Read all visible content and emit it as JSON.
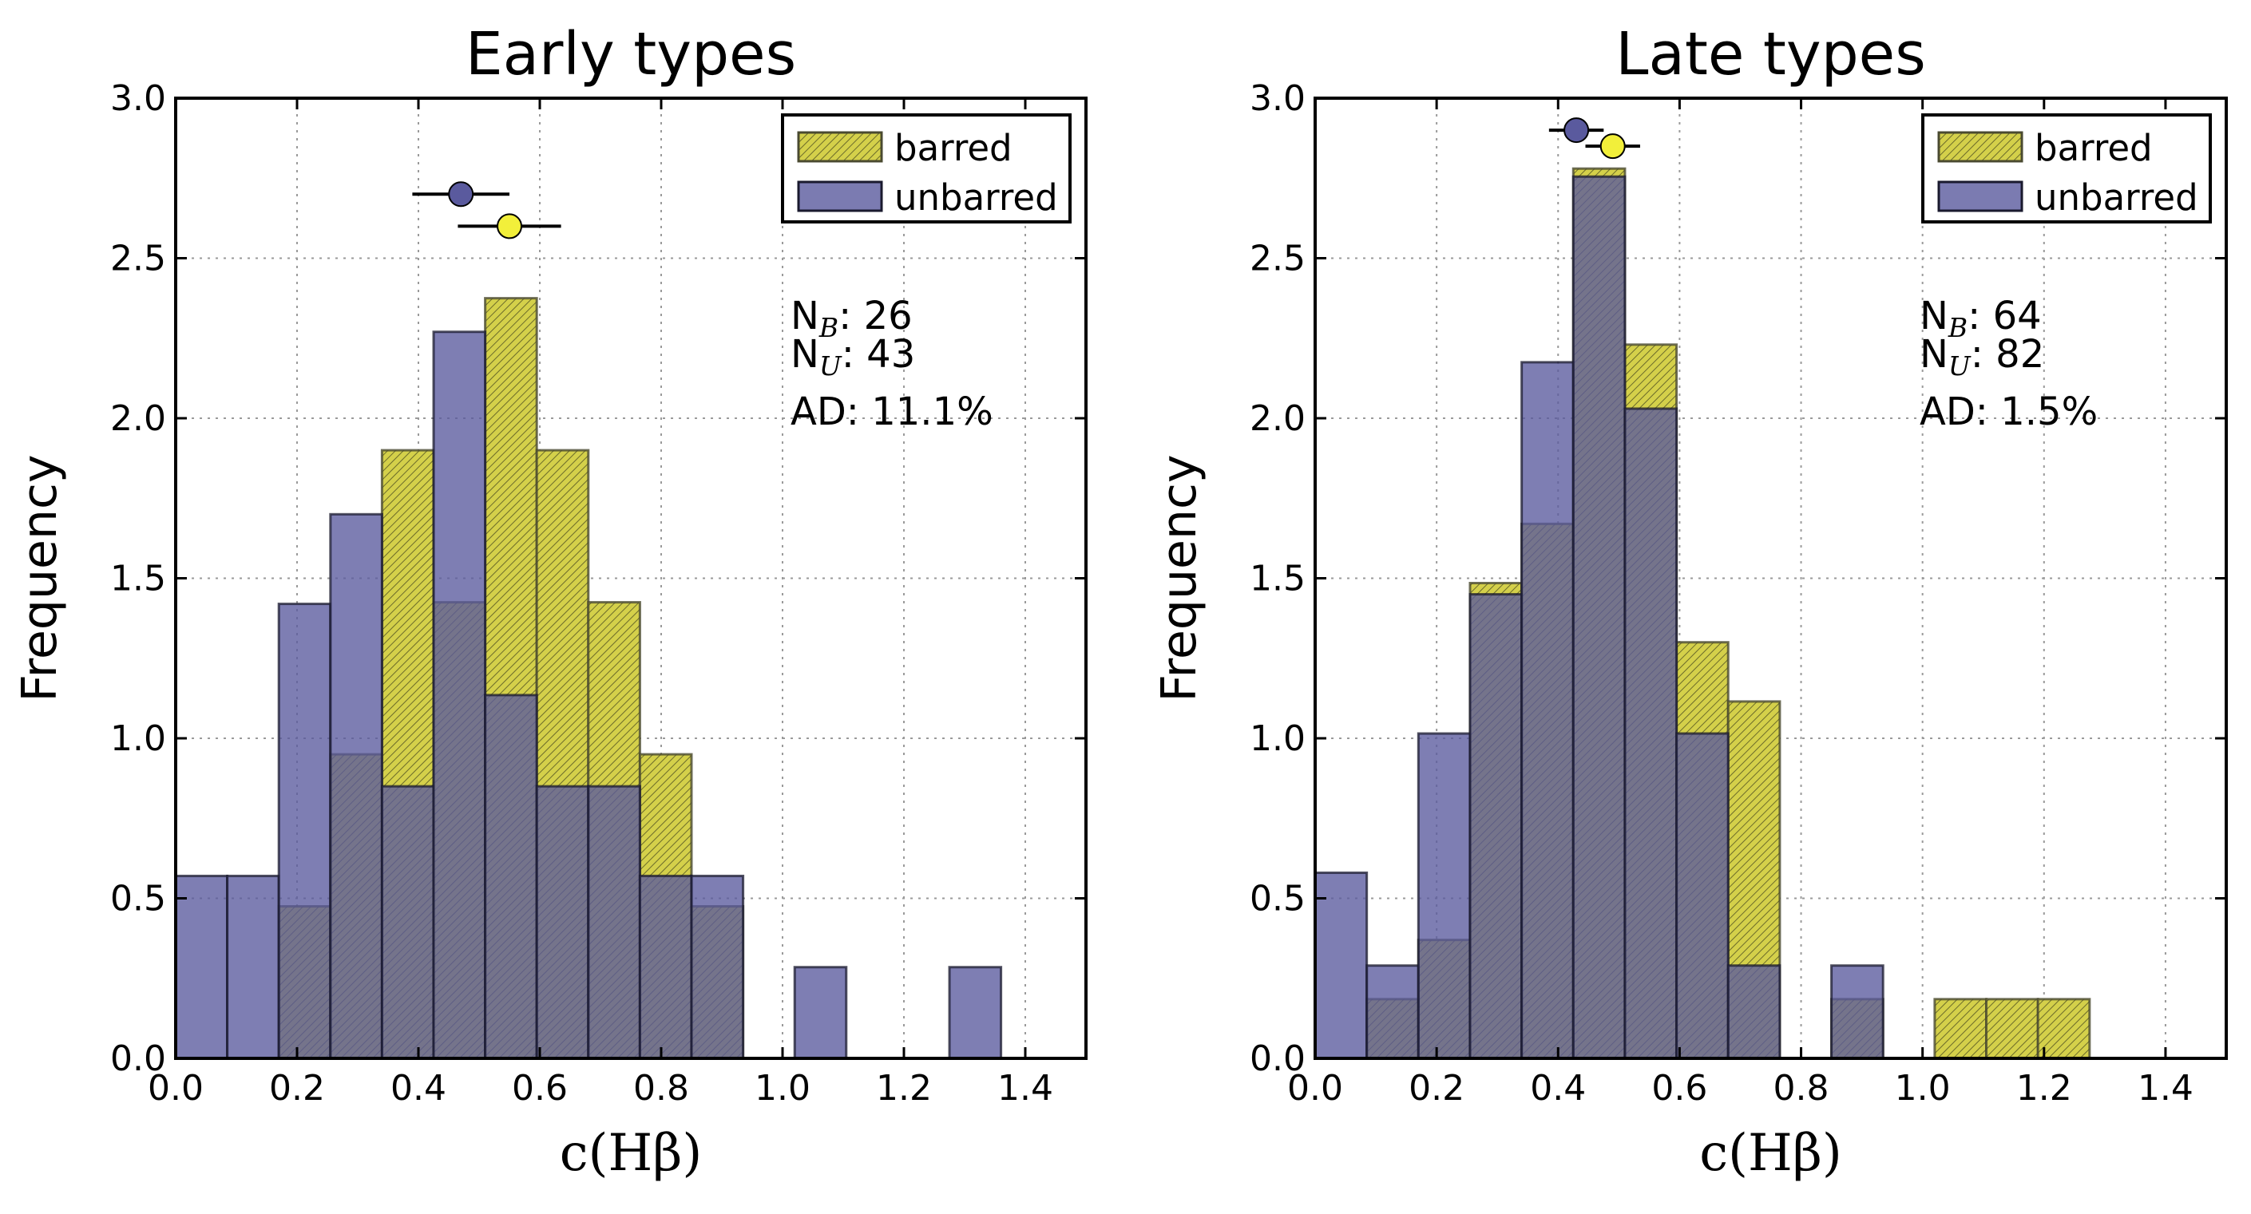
{
  "chart_data": [
    {
      "type": "bar",
      "title": "Early types",
      "xlabel": "c(Hβ)",
      "ylabel": "Frequency",
      "xlim": [
        0,
        1.5
      ],
      "ylim": [
        0,
        3.0
      ],
      "xticks": [
        "0.0",
        "0.2",
        "0.4",
        "0.6",
        "0.8",
        "1.0",
        "1.2",
        "1.4"
      ],
      "yticks": [
        "0.0",
        "0.5",
        "1.0",
        "1.5",
        "2.0",
        "2.5",
        "3.0"
      ],
      "grid": true,
      "legend_position": "top-right",
      "series": [
        {
          "name": "barred",
          "color": "#d4d04a",
          "hatch": true,
          "bins": [
            {
              "x0": 0.17,
              "x1": 0.255,
              "y": 0.475
            },
            {
              "x0": 0.255,
              "x1": 0.34,
              "y": 0.95
            },
            {
              "x0": 0.34,
              "x1": 0.425,
              "y": 1.9
            },
            {
              "x0": 0.425,
              "x1": 0.51,
              "y": 1.425
            },
            {
              "x0": 0.51,
              "x1": 0.595,
              "y": 2.375
            },
            {
              "x0": 0.595,
              "x1": 0.68,
              "y": 1.9
            },
            {
              "x0": 0.68,
              "x1": 0.765,
              "y": 1.425
            },
            {
              "x0": 0.765,
              "x1": 0.85,
              "y": 0.95
            },
            {
              "x0": 0.85,
              "x1": 0.935,
              "y": 0.475
            }
          ],
          "mean": 0.55,
          "mean_y": 2.6,
          "error": [
            0.465,
            0.635
          ]
        },
        {
          "name": "unbarred",
          "color": "#5a5a9e",
          "hatch": false,
          "bins": [
            {
              "x0": 0.0,
              "x1": 0.085,
              "y": 0.57
            },
            {
              "x0": 0.085,
              "x1": 0.17,
              "y": 0.57
            },
            {
              "x0": 0.17,
              "x1": 0.255,
              "y": 1.42
            },
            {
              "x0": 0.255,
              "x1": 0.34,
              "y": 1.7
            },
            {
              "x0": 0.34,
              "x1": 0.425,
              "y": 0.85
            },
            {
              "x0": 0.425,
              "x1": 0.51,
              "y": 2.27
            },
            {
              "x0": 0.51,
              "x1": 0.595,
              "y": 1.135
            },
            {
              "x0": 0.595,
              "x1": 0.68,
              "y": 0.85
            },
            {
              "x0": 0.68,
              "x1": 0.765,
              "y": 0.85
            },
            {
              "x0": 0.765,
              "x1": 0.85,
              "y": 0.57
            },
            {
              "x0": 0.85,
              "x1": 0.935,
              "y": 0.57
            },
            {
              "x0": 1.02,
              "x1": 1.105,
              "y": 0.285
            },
            {
              "x0": 1.275,
              "x1": 1.36,
              "y": 0.285
            }
          ],
          "mean": 0.47,
          "mean_y": 2.7,
          "error": [
            0.39,
            0.55
          ]
        }
      ],
      "annotations": {
        "nb_prefix": "N",
        "nb_sub": "B",
        "nb_value": ": 26",
        "nu_prefix": "N",
        "nu_sub": "U",
        "nu_value": ": 43",
        "ad": "AD: 11.1%"
      }
    },
    {
      "type": "bar",
      "title": "Late types",
      "xlabel": "c(Hβ)",
      "ylabel": "Frequency",
      "xlim": [
        0,
        1.5
      ],
      "ylim": [
        0,
        3.0
      ],
      "xticks": [
        "0.0",
        "0.2",
        "0.4",
        "0.6",
        "0.8",
        "1.0",
        "1.2",
        "1.4"
      ],
      "yticks": [
        "0.0",
        "0.5",
        "1.0",
        "1.5",
        "2.0",
        "2.5",
        "3.0"
      ],
      "grid": true,
      "legend_position": "top-right",
      "series": [
        {
          "name": "barred",
          "color": "#d4d04a",
          "hatch": true,
          "bins": [
            {
              "x0": 0.085,
              "x1": 0.17,
              "y": 0.185
            },
            {
              "x0": 0.17,
              "x1": 0.255,
              "y": 0.37
            },
            {
              "x0": 0.255,
              "x1": 0.34,
              "y": 1.485
            },
            {
              "x0": 0.34,
              "x1": 0.425,
              "y": 1.67
            },
            {
              "x0": 0.425,
              "x1": 0.51,
              "y": 2.78
            },
            {
              "x0": 0.51,
              "x1": 0.595,
              "y": 2.23
            },
            {
              "x0": 0.595,
              "x1": 0.68,
              "y": 1.3
            },
            {
              "x0": 0.68,
              "x1": 0.765,
              "y": 1.115
            },
            {
              "x0": 0.85,
              "x1": 0.935,
              "y": 0.185
            },
            {
              "x0": 1.02,
              "x1": 1.105,
              "y": 0.185
            },
            {
              "x0": 1.105,
              "x1": 1.19,
              "y": 0.185
            },
            {
              "x0": 1.19,
              "x1": 1.275,
              "y": 0.185
            }
          ],
          "mean": 0.49,
          "mean_y": 2.85,
          "error": [
            0.445,
            0.535
          ]
        },
        {
          "name": "unbarred",
          "color": "#5a5a9e",
          "hatch": false,
          "bins": [
            {
              "x0": 0.0,
              "x1": 0.085,
              "y": 0.58
            },
            {
              "x0": 0.085,
              "x1": 0.17,
              "y": 0.29
            },
            {
              "x0": 0.17,
              "x1": 0.255,
              "y": 1.015
            },
            {
              "x0": 0.255,
              "x1": 0.34,
              "y": 1.45
            },
            {
              "x0": 0.34,
              "x1": 0.425,
              "y": 2.175
            },
            {
              "x0": 0.425,
              "x1": 0.51,
              "y": 2.755
            },
            {
              "x0": 0.51,
              "x1": 0.595,
              "y": 2.03
            },
            {
              "x0": 0.595,
              "x1": 0.68,
              "y": 1.015
            },
            {
              "x0": 0.68,
              "x1": 0.765,
              "y": 0.29
            },
            {
              "x0": 0.85,
              "x1": 0.935,
              "y": 0.29
            }
          ],
          "mean": 0.43,
          "mean_y": 2.9,
          "error": [
            0.385,
            0.475
          ]
        }
      ],
      "annotations": {
        "nb_prefix": "N",
        "nb_sub": "B",
        "nb_value": ": 64",
        "nu_prefix": "N",
        "nu_sub": "U",
        "nu_value": ": 82",
        "ad": "AD: 1.5%"
      }
    }
  ]
}
